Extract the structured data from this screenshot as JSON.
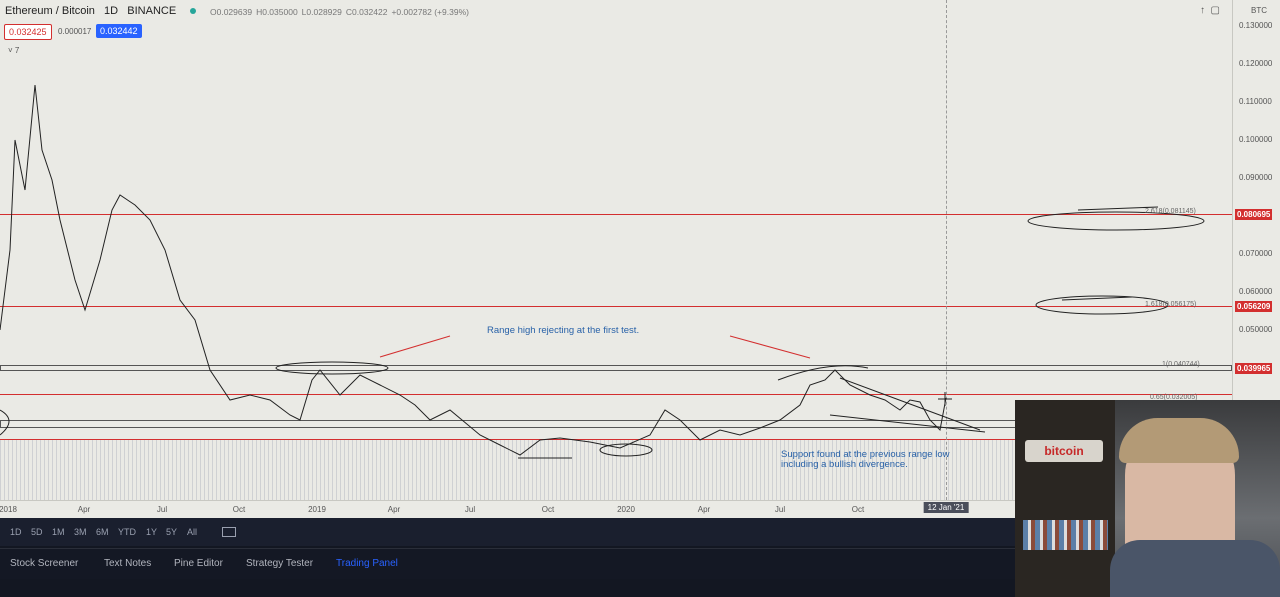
{
  "header": {
    "symbol": "Ethereum / Bitcoin",
    "interval": "1D",
    "exchange": "BINANCE",
    "ohlc": [
      "O0.029639",
      "H0.035000",
      "L0.028929",
      "C0.032422",
      "+0.002782 (+9.39%)"
    ],
    "bid": "0.032425",
    "spread": "0.000017",
    "ask": "0.032442",
    "indicators": "7"
  },
  "price_axis": {
    "currency": "BTC",
    "ticks": [
      "0.130000",
      "0.120000",
      "0.110000",
      "0.100000",
      "0.090000",
      "0.080000",
      "0.070000",
      "0.060000",
      "0.050000"
    ],
    "level_labels": [
      "0.080695",
      "0.056209",
      "0.039965"
    ]
  },
  "fib_labels": [
    "2.618(0.081145)",
    "1.618(0.056175)",
    "1(0.040744)",
    "0.65(0.032005)"
  ],
  "time_axis": [
    "2018",
    "Apr",
    "Jul",
    "Oct",
    "2019",
    "Apr",
    "Jul",
    "Oct",
    "2020",
    "Apr",
    "Jul",
    "Oct",
    "12 Jan '21"
  ],
  "annotations": {
    "range_high": "Range high rejecting at the first test.",
    "support": [
      "Support found at the previous range low",
      "including a bullish divergence."
    ]
  },
  "ranges": [
    "1D",
    "5D",
    "1M",
    "3M",
    "6M",
    "YTD",
    "1Y",
    "5Y",
    "All"
  ],
  "tabs": [
    "Stock Screener",
    "Text Notes",
    "Pine Editor",
    "Strategy Tester",
    "Trading Panel"
  ],
  "webcam": {
    "sign": "bitcoin"
  }
}
